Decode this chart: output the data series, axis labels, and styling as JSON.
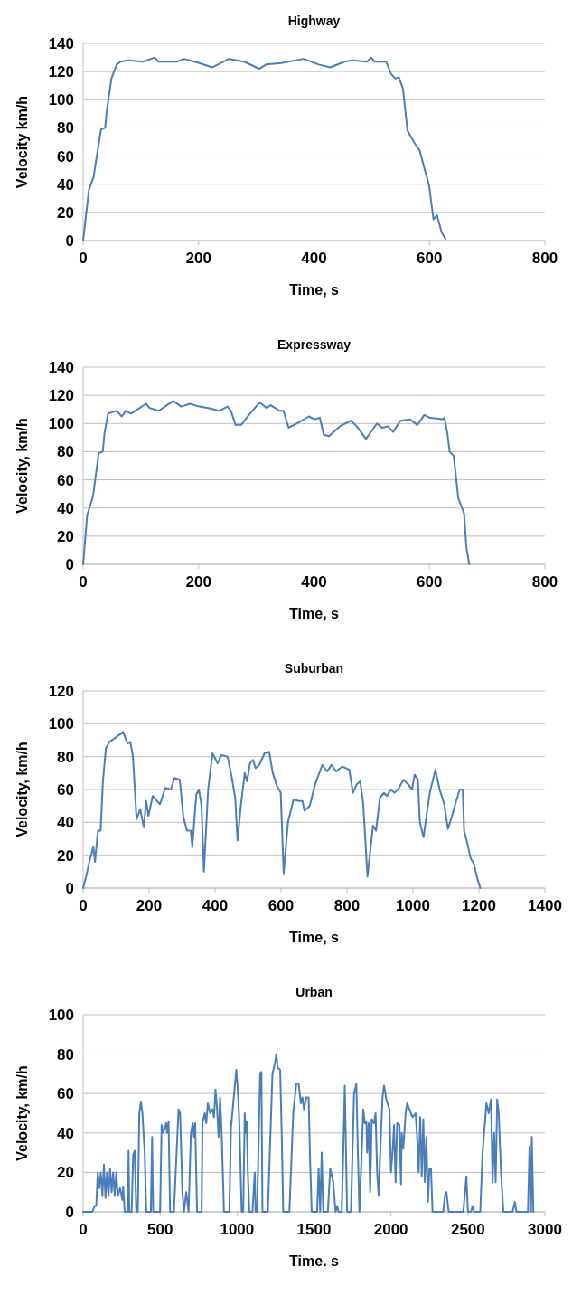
{
  "chart_data": [
    {
      "type": "line",
      "title": "Highway",
      "xlabel": "Time, s",
      "ylabel": "Velocity km/h",
      "color": "#4a7ebb",
      "grid": "y",
      "xlim": [
        0,
        800
      ],
      "xticks": [
        0,
        200,
        400,
        600,
        800
      ],
      "ylim": [
        0,
        140
      ],
      "yticks": [
        0,
        20,
        40,
        60,
        80,
        100,
        120,
        140
      ],
      "x": [
        0,
        10,
        18,
        31,
        38,
        41,
        49,
        58,
        65,
        78,
        104,
        124,
        130,
        162,
        175,
        201,
        224,
        253,
        279,
        305,
        317,
        343,
        382,
        408,
        428,
        453,
        466,
        492,
        499,
        505,
        525,
        534,
        541,
        547,
        554,
        562,
        573,
        583,
        592,
        599,
        607,
        613,
        621,
        628
      ],
      "values": [
        0,
        36,
        45,
        79,
        80,
        92,
        115,
        125,
        127,
        128,
        127,
        130,
        127,
        127,
        129,
        126,
        123,
        129,
        127,
        122,
        125,
        126,
        129,
        125,
        123,
        127,
        128,
        127,
        130,
        127,
        127,
        118,
        115,
        116,
        108,
        78,
        70,
        64,
        50,
        40,
        15,
        18,
        6,
        1
      ]
    },
    {
      "type": "line",
      "title": "Expressway",
      "xlabel": "Time, s",
      "ylabel": "Velocity, km/h",
      "color": "#4a7ebb",
      "grid": "y",
      "xlim": [
        0,
        800
      ],
      "xticks": [
        0,
        200,
        400,
        600,
        800
      ],
      "ylim": [
        0,
        140
      ],
      "yticks": [
        0,
        20,
        40,
        60,
        80,
        100,
        120,
        140
      ],
      "x": [
        0,
        7,
        17,
        27,
        34,
        37,
        43,
        58,
        67,
        74,
        83,
        109,
        115,
        131,
        156,
        170,
        185,
        201,
        217,
        236,
        250,
        256,
        264,
        274,
        287,
        306,
        318,
        325,
        340,
        347,
        356,
        370,
        391,
        401,
        410,
        417,
        426,
        445,
        464,
        474,
        490,
        509,
        518,
        528,
        537,
        550,
        566,
        579,
        591,
        601,
        623,
        626,
        631,
        635,
        642,
        650,
        660,
        664,
        669
      ],
      "values": [
        0,
        35,
        48,
        79,
        80,
        93,
        107,
        109,
        105,
        109,
        107,
        114,
        111,
        109,
        116,
        112,
        114,
        112,
        111,
        109,
        112,
        109,
        99,
        99,
        106,
        115,
        111,
        113,
        109,
        109,
        97,
        100,
        105,
        103,
        104,
        92,
        91,
        98,
        102,
        98,
        89,
        100,
        97,
        98,
        94,
        102,
        103,
        99,
        106,
        104,
        103,
        104,
        93,
        80,
        77,
        47,
        36,
        12,
        0
      ]
    },
    {
      "type": "line",
      "title": "Suburban",
      "xlabel": "Time, s",
      "ylabel": "Velocity, km/h",
      "color": "#4a7ebb",
      "grid": "y",
      "xlim": [
        0,
        1400
      ],
      "xticks": [
        0,
        200,
        400,
        600,
        800,
        1000,
        1200,
        1400
      ],
      "ylim": [
        0,
        120
      ],
      "yticks": [
        0,
        20,
        40,
        60,
        80,
        100,
        120
      ],
      "x": [
        0,
        9,
        20,
        31,
        36,
        45,
        53,
        60,
        69,
        80,
        101,
        121,
        135,
        143,
        151,
        162,
        173,
        184,
        191,
        198,
        211,
        233,
        249,
        266,
        277,
        293,
        304,
        315,
        326,
        331,
        343,
        351,
        359,
        366,
        379,
        392,
        408,
        419,
        438,
        450,
        461,
        468,
        479,
        490,
        497,
        506,
        515,
        523,
        534,
        550,
        564,
        575,
        588,
        599,
        608,
        621,
        638,
        654,
        665,
        671,
        687,
        703,
        725,
        740,
        753,
        767,
        786,
        807,
        818,
        829,
        840,
        849,
        862,
        879,
        888,
        900,
        912,
        921,
        933,
        944,
        955,
        971,
        986,
        997,
        1005,
        1015,
        1021,
        1032,
        1051,
        1068,
        1081,
        1095,
        1106,
        1120,
        1131,
        1142,
        1151,
        1155,
        1164,
        1175,
        1184,
        1195,
        1204
      ],
      "values": [
        0,
        7,
        17,
        25,
        16,
        35,
        35,
        65,
        85,
        89,
        92,
        95,
        88,
        89,
        80,
        42,
        48,
        37,
        53,
        44,
        56,
        51,
        61,
        60,
        67,
        66,
        43,
        35,
        35,
        25,
        57,
        60,
        50,
        10,
        60,
        82,
        76,
        81,
        80,
        68,
        55,
        29,
        52,
        70,
        65,
        76,
        78,
        73,
        75,
        82,
        83,
        70,
        62,
        58,
        9,
        40,
        54,
        53,
        53,
        47,
        50,
        63,
        75,
        71,
        75,
        71,
        74,
        72,
        58,
        63,
        65,
        52,
        7,
        38,
        35,
        55,
        58,
        56,
        60,
        58,
        60,
        66,
        63,
        60,
        69,
        66,
        40,
        31,
        58,
        72,
        60,
        51,
        36,
        45,
        53,
        60,
        60,
        35,
        28,
        18,
        15,
        6,
        0
      ]
    },
    {
      "type": "line",
      "title": "Urban",
      "xlabel": "Time. s",
      "ylabel": "Velocity, km/h",
      "color": "#4a7ebb",
      "grid": "y",
      "xlim": [
        0,
        3000
      ],
      "xticks": [
        0,
        500,
        1000,
        1500,
        2000,
        2500,
        3000
      ],
      "ylim": [
        0,
        100
      ],
      "yticks": [
        0,
        20,
        40,
        60,
        80,
        100
      ],
      "x": [
        0,
        60,
        75,
        85,
        95,
        105,
        115,
        125,
        135,
        145,
        155,
        165,
        175,
        185,
        195,
        205,
        215,
        225,
        240,
        255,
        260,
        270,
        290,
        295,
        300,
        315,
        325,
        335,
        345,
        355,
        365,
        375,
        385,
        400,
        410,
        440,
        448,
        455,
        500,
        510,
        520,
        540,
        545,
        555,
        565,
        590,
        610,
        620,
        630,
        645,
        655,
        670,
        685,
        700,
        712,
        720,
        728,
        740,
        770,
        775,
        790,
        800,
        810,
        825,
        840,
        850,
        860,
        870,
        880,
        890,
        900,
        915,
        950,
        960,
        975,
        995,
        1005,
        1015,
        1030,
        1040,
        1050,
        1058,
        1063,
        1070,
        1080,
        1100,
        1115,
        1120,
        1130,
        1150,
        1158,
        1165,
        1200,
        1230,
        1245,
        1255,
        1265,
        1280,
        1290,
        1300,
        1340,
        1365,
        1385,
        1400,
        1415,
        1425,
        1435,
        1450,
        1465,
        1475,
        1485,
        1520,
        1530,
        1540,
        1550,
        1560,
        1590,
        1605,
        1625,
        1640,
        1650,
        1660,
        1680,
        1690,
        1700,
        1715,
        1740,
        1760,
        1775,
        1785,
        1795,
        1810,
        1820,
        1830,
        1840,
        1845,
        1855,
        1865,
        1875,
        1890,
        1900,
        1910,
        1920,
        1930,
        1945,
        1955,
        1970,
        1990,
        2000,
        2010,
        2020,
        2030,
        2040,
        2055,
        2065,
        2070,
        2080,
        2095,
        2105,
        2120,
        2140,
        2160,
        2170,
        2180,
        2190,
        2200,
        2210,
        2220,
        2230,
        2240,
        2250,
        2260,
        2270,
        2340,
        2350,
        2360,
        2375,
        2470,
        2490,
        2500,
        2520,
        2530,
        2540,
        2580,
        2595,
        2610,
        2620,
        2635,
        2650,
        2660,
        2670,
        2680,
        2690,
        2700,
        2715,
        2730,
        2790,
        2805,
        2815,
        2890,
        2900,
        2910,
        2915,
        2925
      ],
      "values": [
        0,
        0,
        3,
        3,
        20,
        12,
        20,
        8,
        24,
        7,
        20,
        8,
        22,
        10,
        20,
        8,
        20,
        8,
        12,
        6,
        13,
        0,
        0,
        31,
        0,
        0,
        29,
        31,
        0,
        0,
        50,
        56,
        50,
        30,
        0,
        0,
        38,
        0,
        0,
        44,
        40,
        45,
        40,
        46,
        0,
        0,
        35,
        52,
        50,
        10,
        0,
        10,
        0,
        40,
        45,
        38,
        45,
        0,
        0,
        45,
        50,
        45,
        55,
        50,
        52,
        48,
        62,
        52,
        38,
        58,
        40,
        0,
        0,
        42,
        55,
        72,
        62,
        45,
        0,
        0,
        50,
        40,
        46,
        20,
        0,
        0,
        20,
        0,
        0,
        70,
        71,
        0,
        0,
        70,
        75,
        80,
        73,
        72,
        40,
        0,
        0,
        50,
        65,
        65,
        55,
        58,
        52,
        58,
        58,
        25,
        0,
        0,
        22,
        0,
        30,
        0,
        0,
        22,
        15,
        0,
        3,
        0,
        0,
        30,
        64,
        0,
        0,
        60,
        65,
        30,
        0,
        30,
        52,
        45,
        46,
        30,
        45,
        10,
        47,
        45,
        50,
        20,
        8,
        30,
        58,
        64,
        57,
        52,
        20,
        30,
        44,
        15,
        45,
        44,
        14,
        40,
        32,
        50,
        55,
        52,
        48,
        50,
        38,
        20,
        48,
        18,
        47,
        15,
        38,
        5,
        22,
        22,
        0,
        0,
        8,
        10,
        0,
        0,
        18,
        0,
        0,
        3,
        0,
        0,
        30,
        45,
        55,
        50,
        57,
        15,
        40,
        15,
        57,
        50,
        20,
        0,
        0,
        5,
        0,
        0,
        33,
        0,
        38,
        0
      ]
    }
  ]
}
